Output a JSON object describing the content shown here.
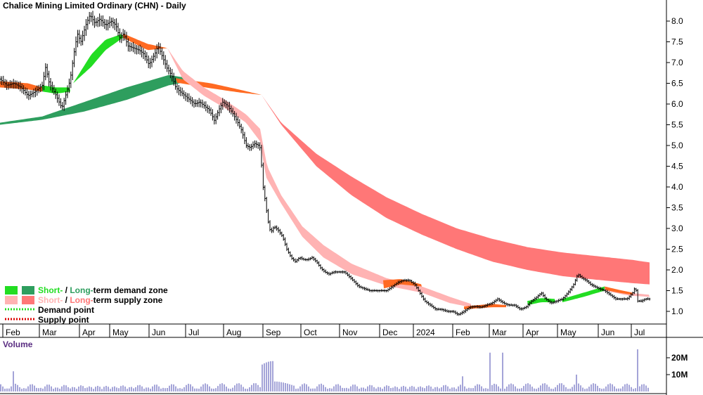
{
  "chart_data": {
    "type": "line",
    "title": "Chalice Mining Limited Ordinary (CHN) - Daily",
    "price_axis": {
      "ticks": [
        "1.0",
        "1.5",
        "2.0",
        "2.5",
        "3.0",
        "3.5",
        "4.0",
        "4.5",
        "5.0",
        "5.5",
        "6.0",
        "6.5",
        "7.0",
        "7.5",
        "8.0"
      ],
      "ylim": [
        0.7,
        8.4
      ]
    },
    "months": [
      "Feb",
      "Mar",
      "Apr",
      "May",
      "Jun",
      "Jul",
      "Aug",
      "Sep",
      "Oct",
      "Nov",
      "Dec",
      "2024",
      "Feb",
      "Mar",
      "Apr",
      "May",
      "Jun",
      "Jul"
    ],
    "legend": {
      "demand_short": "Short-",
      "demand_sep": " / ",
      "demand_long": "Long-",
      "demand_rest": "term demand zone",
      "supply_short": "Short-",
      "supply_sep": " / ",
      "supply_long": "Long-",
      "supply_rest": "term supply zone",
      "demand_point": "Demand point",
      "supply_point": "Supply point"
    },
    "colors": {
      "short_demand": "#22dd22",
      "long_demand": "#2e9e5e",
      "short_supply": "#ffb3b3",
      "long_supply": "#ff7777",
      "orange": "#ff6a22",
      "demand_point": "#22dd22",
      "supply_point": "#dd0000",
      "bars": "#000000",
      "volume": "#4848b0"
    },
    "close": [
      [
        0,
        6.6
      ],
      [
        10,
        6.45
      ],
      [
        20,
        6.5
      ],
      [
        30,
        6.4
      ],
      [
        40,
        6.2
      ],
      [
        50,
        6.3
      ],
      [
        60,
        6.45
      ],
      [
        65,
        6.9
      ],
      [
        70,
        6.5
      ],
      [
        80,
        6.2
      ],
      [
        88,
        5.9
      ],
      [
        95,
        6.3
      ],
      [
        100,
        6.6
      ],
      [
        105,
        7.2
      ],
      [
        110,
        7.7
      ],
      [
        115,
        7.5
      ],
      [
        122,
        7.9
      ],
      [
        128,
        8.15
      ],
      [
        135,
        7.95
      ],
      [
        142,
        8.05
      ],
      [
        150,
        7.9
      ],
      [
        158,
        8.0
      ],
      [
        165,
        7.9
      ],
      [
        170,
        7.6
      ],
      [
        176,
        7.7
      ],
      [
        182,
        7.4
      ],
      [
        190,
        7.35
      ],
      [
        198,
        7.3
      ],
      [
        205,
        7.2
      ],
      [
        212,
        6.95
      ],
      [
        220,
        7.2
      ],
      [
        225,
        7.4
      ],
      [
        232,
        7.1
      ],
      [
        238,
        6.85
      ],
      [
        244,
        6.7
      ],
      [
        250,
        6.4
      ],
      [
        256,
        6.3
      ],
      [
        263,
        6.2
      ],
      [
        270,
        6.1
      ],
      [
        277,
        6.0
      ],
      [
        284,
        6.05
      ],
      [
        291,
        5.95
      ],
      [
        298,
        5.85
      ],
      [
        305,
        5.6
      ],
      [
        311,
        5.85
      ],
      [
        317,
        6.05
      ],
      [
        324,
        5.95
      ],
      [
        330,
        5.8
      ],
      [
        337,
        5.6
      ],
      [
        344,
        5.35
      ],
      [
        350,
        5.0
      ],
      [
        356,
        4.95
      ],
      [
        362,
        5.05
      ],
      [
        368,
        5.0
      ],
      [
        371,
        4.9
      ],
      [
        373,
        4.15
      ],
      [
        377,
        3.7
      ],
      [
        381,
        3.2
      ],
      [
        385,
        2.9
      ],
      [
        390,
        3.05
      ],
      [
        396,
        2.95
      ],
      [
        402,
        2.8
      ],
      [
        408,
        2.5
      ],
      [
        414,
        2.3
      ],
      [
        420,
        2.2
      ],
      [
        426,
        2.3
      ],
      [
        432,
        2.25
      ],
      [
        438,
        2.25
      ],
      [
        444,
        2.3
      ],
      [
        450,
        2.2
      ],
      [
        456,
        2.05
      ],
      [
        462,
        1.95
      ],
      [
        468,
        1.9
      ],
      [
        475,
        1.95
      ],
      [
        482,
        1.95
      ],
      [
        490,
        1.95
      ],
      [
        496,
        1.85
      ],
      [
        502,
        1.75
      ],
      [
        510,
        1.6
      ],
      [
        518,
        1.55
      ],
      [
        526,
        1.5
      ],
      [
        534,
        1.5
      ],
      [
        542,
        1.5
      ],
      [
        550,
        1.5
      ],
      [
        558,
        1.6
      ],
      [
        566,
        1.7
      ],
      [
        574,
        1.75
      ],
      [
        582,
        1.75
      ],
      [
        590,
        1.65
      ],
      [
        597,
        1.45
      ],
      [
        604,
        1.25
      ],
      [
        612,
        1.15
      ],
      [
        620,
        1.05
      ],
      [
        628,
        1.05
      ],
      [
        636,
        1.0
      ],
      [
        644,
        1.0
      ],
      [
        652,
        0.92
      ],
      [
        660,
        1.0
      ],
      [
        668,
        1.1
      ],
      [
        676,
        1.12
      ],
      [
        684,
        1.1
      ],
      [
        692,
        1.15
      ],
      [
        700,
        1.2
      ],
      [
        708,
        1.3
      ],
      [
        716,
        1.2
      ],
      [
        724,
        1.15
      ],
      [
        732,
        1.15
      ],
      [
        740,
        1.05
      ],
      [
        748,
        1.1
      ],
      [
        756,
        1.25
      ],
      [
        764,
        1.35
      ],
      [
        770,
        1.45
      ],
      [
        776,
        1.3
      ],
      [
        784,
        1.2
      ],
      [
        792,
        1.25
      ],
      [
        800,
        1.3
      ],
      [
        808,
        1.45
      ],
      [
        816,
        1.65
      ],
      [
        822,
        1.9
      ],
      [
        828,
        1.8
      ],
      [
        834,
        1.75
      ],
      [
        840,
        1.65
      ],
      [
        846,
        1.6
      ],
      [
        852,
        1.55
      ],
      [
        860,
        1.5
      ],
      [
        868,
        1.4
      ],
      [
        876,
        1.3
      ],
      [
        884,
        1.3
      ],
      [
        892,
        1.3
      ],
      [
        900,
        1.45
      ],
      [
        904,
        1.6
      ],
      [
        907,
        1.25
      ],
      [
        912,
        1.25
      ],
      [
        918,
        1.3
      ],
      [
        924,
        1.3
      ]
    ],
    "bands": {
      "long_supply_upper": [
        [
          372,
          6.22
        ],
        [
          400,
          5.55
        ],
        [
          450,
          4.8
        ],
        [
          500,
          4.25
        ],
        [
          550,
          3.75
        ],
        [
          600,
          3.35
        ],
        [
          650,
          3.0
        ],
        [
          700,
          2.75
        ],
        [
          750,
          2.55
        ],
        [
          800,
          2.42
        ],
        [
          850,
          2.33
        ],
        [
          900,
          2.24
        ],
        [
          924,
          2.18
        ]
      ],
      "long_supply_lower": [
        [
          372,
          6.22
        ],
        [
          400,
          5.5
        ],
        [
          450,
          4.5
        ],
        [
          500,
          3.8
        ],
        [
          550,
          3.25
        ],
        [
          600,
          2.85
        ],
        [
          650,
          2.5
        ],
        [
          700,
          2.2
        ],
        [
          750,
          2.0
        ],
        [
          800,
          1.85
        ],
        [
          850,
          1.76
        ],
        [
          900,
          1.68
        ],
        [
          924,
          1.65
        ]
      ],
      "short_supply_upper": [
        [
          238,
          7.35
        ],
        [
          260,
          6.8
        ],
        [
          290,
          6.4
        ],
        [
          320,
          6.1
        ],
        [
          350,
          5.75
        ],
        [
          370,
          5.4
        ],
        [
          380,
          4.5
        ],
        [
          400,
          3.8
        ],
        [
          430,
          3.05
        ],
        [
          460,
          2.6
        ],
        [
          500,
          2.15
        ],
        [
          550,
          1.8
        ],
        [
          600,
          1.6
        ],
        [
          640,
          1.35
        ],
        [
          670,
          1.18
        ]
      ],
      "short_supply_lower": [
        [
          238,
          7.35
        ],
        [
          260,
          6.6
        ],
        [
          290,
          6.2
        ],
        [
          320,
          5.9
        ],
        [
          350,
          5.55
        ],
        [
          370,
          5.1
        ],
        [
          378,
          4.25
        ],
        [
          400,
          3.6
        ],
        [
          430,
          2.8
        ],
        [
          460,
          2.3
        ],
        [
          500,
          1.9
        ],
        [
          550,
          1.62
        ],
        [
          600,
          1.45
        ],
        [
          640,
          1.2
        ],
        [
          670,
          1.1
        ]
      ]
    },
    "volume": {
      "ticks": [
        "10M",
        "20M"
      ],
      "ylim": [
        0,
        27
      ]
    }
  }
}
